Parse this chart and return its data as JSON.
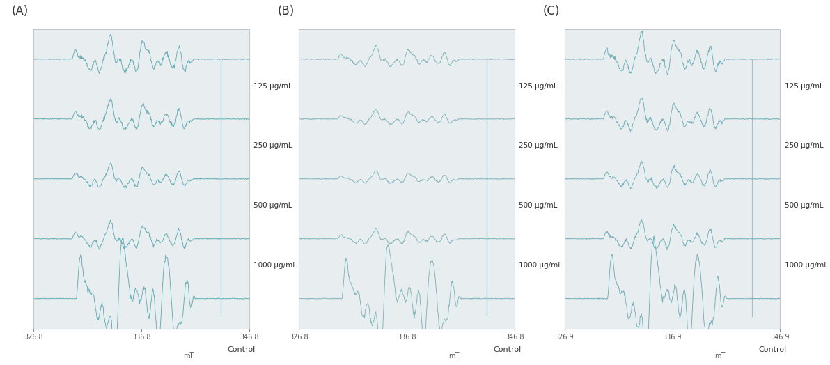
{
  "panels": [
    "(A)",
    "(B)",
    "(C)"
  ],
  "labels": [
    "125 μg/mL",
    "250 μg/mL",
    "500 μg/mL",
    "1000 μg/mL",
    "Control"
  ],
  "x_ticks_AB": [
    "326.8",
    "336.8",
    "346.8"
  ],
  "x_ticks_C": [
    "326.9",
    "336.9",
    "346.9"
  ],
  "x_label": "mT",
  "line_color_A": "#5ba8b0",
  "line_color_B": "#7ab0b8",
  "line_color_C": "#6aaab5",
  "bg_color": "#ffffff",
  "box_color": "#e8eef0",
  "fig_width": 11.92,
  "fig_height": 5.24,
  "dpi": 100,
  "amplitudes_A": [
    0.55,
    0.45,
    0.35,
    0.4,
    1.0
  ],
  "amplitudes_B": [
    0.3,
    0.22,
    0.18,
    0.22,
    0.9
  ],
  "amplitudes_C": [
    0.6,
    0.48,
    0.38,
    0.42,
    1.0
  ],
  "n_pts": 500
}
